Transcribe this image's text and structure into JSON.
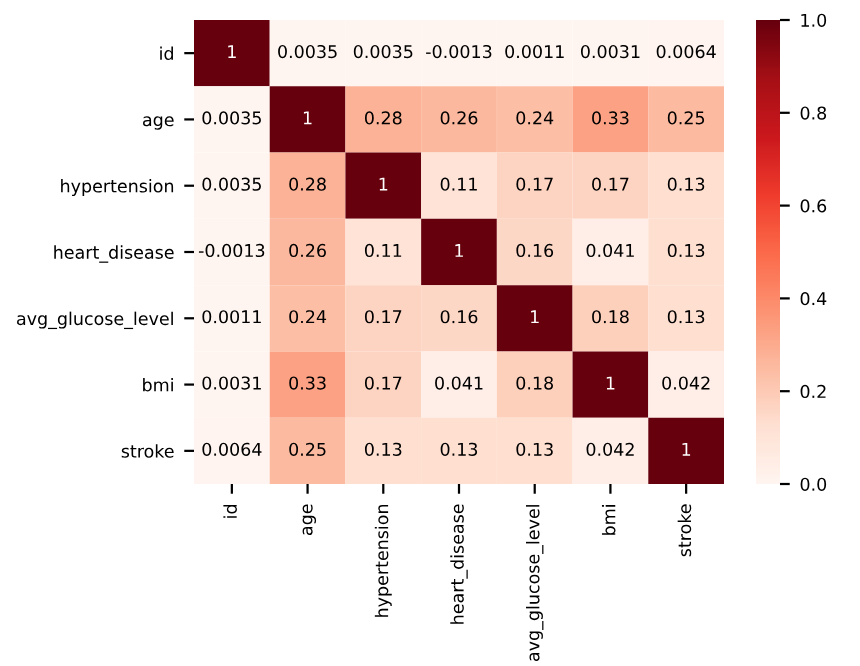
{
  "chart_data": {
    "type": "heatmap",
    "categories": [
      "id",
      "age",
      "hypertension",
      "heart_disease",
      "avg_glucose_level",
      "bmi",
      "stroke"
    ],
    "y_categories": [
      "id",
      "age",
      "hypertension",
      "heart_disease",
      "avg_glucose_level",
      "bmi",
      "stroke"
    ],
    "cells": [
      [
        1,
        0.0035,
        0.0035,
        -0.0013,
        0.0011,
        0.0031,
        0.0064
      ],
      [
        0.0035,
        1,
        0.28,
        0.26,
        0.24,
        0.33,
        0.25
      ],
      [
        0.0035,
        0.28,
        1,
        0.11,
        0.17,
        0.17,
        0.13
      ],
      [
        -0.0013,
        0.26,
        0.11,
        1,
        0.16,
        0.041,
        0.13
      ],
      [
        0.0011,
        0.24,
        0.17,
        0.16,
        1,
        0.18,
        0.13
      ],
      [
        0.0031,
        0.33,
        0.17,
        0.041,
        0.18,
        1,
        0.042
      ],
      [
        0.0064,
        0.25,
        0.13,
        0.13,
        0.13,
        0.042,
        1
      ]
    ],
    "clim": [
      0,
      1
    ],
    "cticks": [
      {
        "value": 0,
        "label": "0.0"
      },
      {
        "value": 0.2,
        "label": "0.2"
      },
      {
        "value": 0.4,
        "label": "0.4"
      },
      {
        "value": 0.6,
        "label": "0.6"
      },
      {
        "value": 0.8,
        "label": "0.8"
      },
      {
        "value": 1,
        "label": "1.0"
      }
    ],
    "data_labels": true
  }
}
